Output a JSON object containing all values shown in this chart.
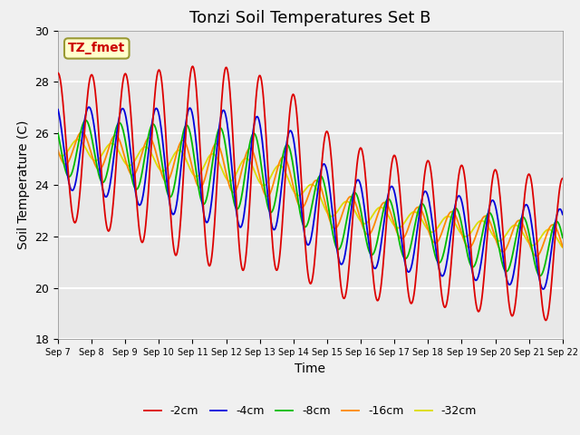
{
  "title": "Tonzi Soil Temperatures Set B",
  "xlabel": "Time",
  "ylabel": "Soil Temperature (C)",
  "ylim": [
    18,
    30
  ],
  "annotation_text": "TZ_fmet",
  "annotation_color": "#cc0000",
  "annotation_bg": "#ffffcc",
  "annotation_border": "#999933",
  "tick_dates": [
    "Sep 7",
    "Sep 8",
    "Sep 9",
    "Sep 10",
    "Sep 11",
    "Sep 12",
    "Sep 13",
    "Sep 14",
    "Sep 15",
    "Sep 16",
    "Sep 17",
    "Sep 18",
    "Sep 19",
    "Sep 20",
    "Sep 21",
    "Sep 22"
  ],
  "series_colors": [
    "#dd0000",
    "#0000dd",
    "#00bb00",
    "#ff8800",
    "#dddd00"
  ],
  "series_labels": [
    "-2cm",
    "-4cm",
    "-8cm",
    "-16cm",
    "-32cm"
  ],
  "background_color": "#e8e8e8",
  "grid_color": "#ffffff",
  "title_fontsize": 13,
  "fig_width": 6.4,
  "fig_height": 4.8,
  "dpi": 100
}
